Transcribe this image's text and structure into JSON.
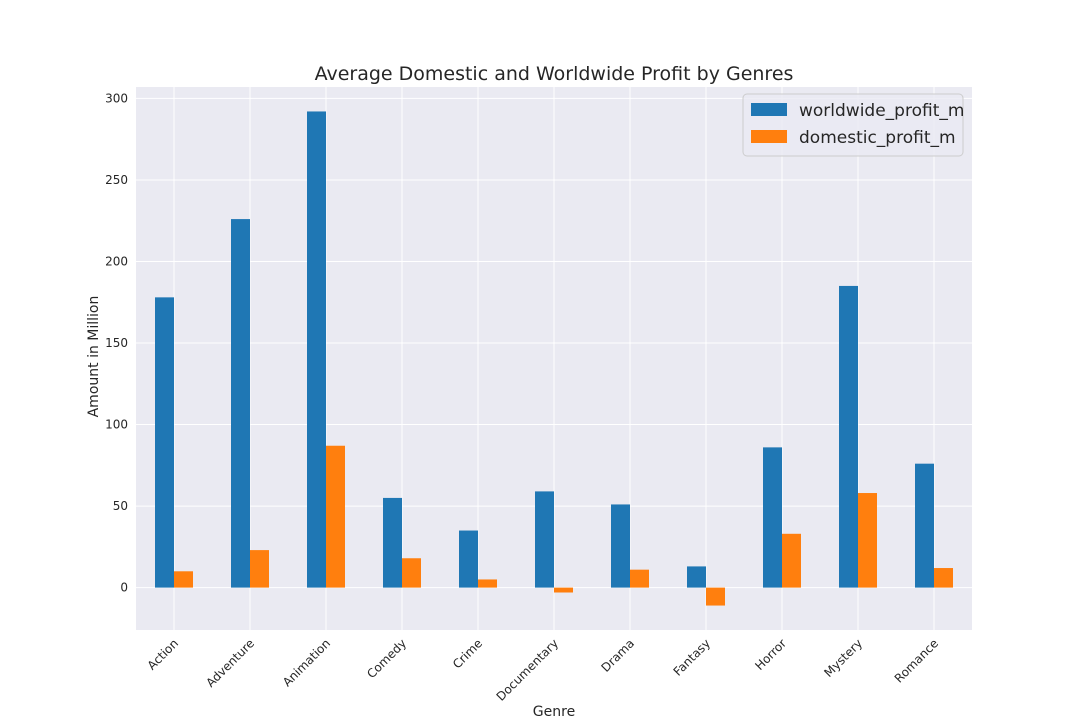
{
  "chart_data": {
    "type": "bar",
    "title": "Average Domestic and Worldwide Profit by Genres",
    "xlabel": "Genre",
    "ylabel": "Amount in Million",
    "categories": [
      "Action",
      "Adventure",
      "Animation",
      "Comedy",
      "Crime",
      "Documentary",
      "Drama",
      "Fantasy",
      "Horror",
      "Mystery",
      "Romance"
    ],
    "series": [
      {
        "name": "worldwide_profit_m",
        "color": "#1f77b4",
        "values": [
          178,
          226,
          292,
          55,
          35,
          59,
          51,
          13,
          86,
          185,
          76
        ]
      },
      {
        "name": "domestic_profit_m",
        "color": "#ff7f0e",
        "values": [
          10,
          23,
          87,
          18,
          5,
          -3,
          11,
          -11,
          33,
          58,
          12
        ]
      }
    ],
    "ylim": [
      -26,
      307
    ],
    "yticks": [
      0,
      50,
      100,
      150,
      200,
      250,
      300
    ],
    "grid": true,
    "legend_position": "top-right",
    "background": "#eaeaf2",
    "grid_color": "#ffffff"
  }
}
